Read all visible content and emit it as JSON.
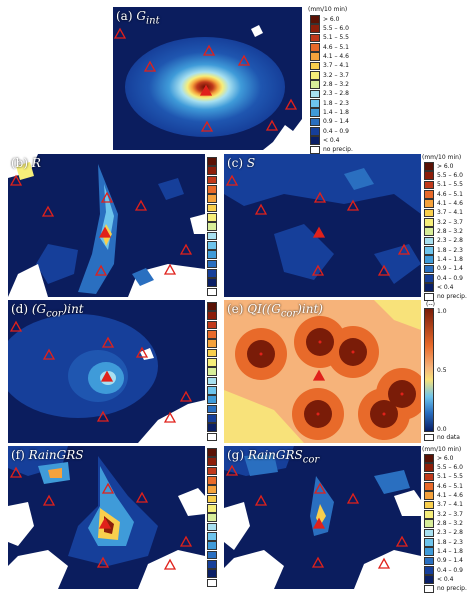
{
  "panels": {
    "a": {
      "label": "(a) ",
      "sym": "G",
      "sub": "int"
    },
    "b": {
      "label": "(b) ",
      "sym": "R",
      "sub": ""
    },
    "c": {
      "label": "(c) ",
      "sym": "S",
      "sub": ""
    },
    "d": {
      "label": "(d) ",
      "sym": "(G",
      "sub": "cor",
      "tail": ")int"
    },
    "e": {
      "label": "(e) ",
      "sym": "QI((G",
      "sub": "cor",
      "tail": ")int)"
    },
    "f": {
      "label": "(f) ",
      "sym": "RainGRS",
      "sub": ""
    },
    "g": {
      "label": "(g) ",
      "sym": "RainGRS",
      "sub": "cor"
    }
  },
  "legend": {
    "unit": "(mm/10 min)",
    "entries": [
      "> 6.0",
      "5.5 – 6.0",
      "5.1 – 5.5",
      "4.6 – 5.1",
      "4.1 – 4.6",
      "3.7 – 4.1",
      "3.2 – 3.7",
      "2.8 – 3.2",
      "2.3 – 2.8",
      "1.8 – 2.3",
      "1.4 – 1.8",
      "0.9 – 1.4",
      "0.4 – 0.9",
      "< 0.4",
      "no precip."
    ],
    "colors": [
      "#5a1205",
      "#8c1e0a",
      "#c0391b",
      "#e86a2a",
      "#f5a23c",
      "#f9cf4d",
      "#f6ee7a",
      "#d8ee9a",
      "#a8e0f0",
      "#6ec4ec",
      "#3f9bd9",
      "#2a6fc0",
      "#163f9a",
      "#0a1f66",
      "#ffffff"
    ]
  },
  "qi_legend": {
    "unit": "(--)",
    "max": "1.0",
    "mid": "0.5",
    "min": "0.0",
    "nodata": "no data"
  },
  "colors": {
    "background": "#0b1d5e",
    "triangle": "#e0211b"
  }
}
